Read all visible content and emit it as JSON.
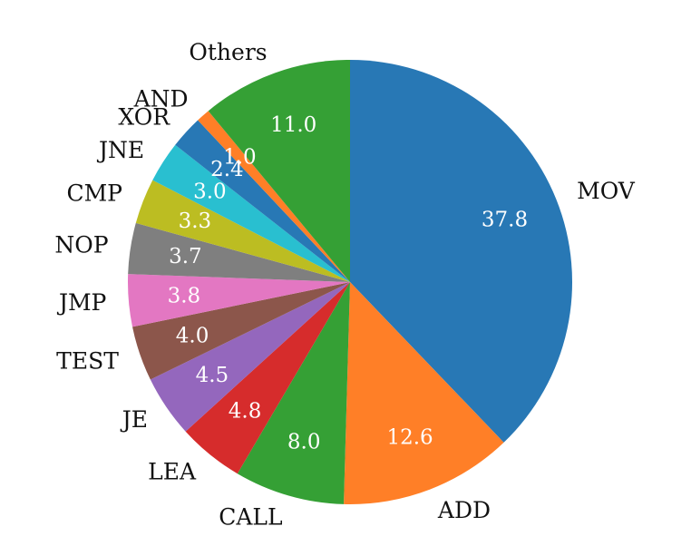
{
  "chart_data": {
    "type": "pie",
    "title": "",
    "categories": [
      "MOV",
      "ADD",
      "CALL",
      "LEA",
      "JE",
      "TEST",
      "JMP",
      "NOP",
      "CMP",
      "JNE",
      "XOR",
      "AND",
      "Others"
    ],
    "values": [
      37.8,
      12.6,
      8.0,
      4.8,
      4.5,
      4.0,
      3.8,
      3.7,
      3.3,
      3.0,
      2.4,
      1.0,
      11.0
    ],
    "value_labels": [
      "37.8",
      "12.6",
      "8.0",
      "4.8",
      "4.5",
      "4.0",
      "3.8",
      "3.7",
      "3.3",
      "3.0",
      "2.4",
      "1.0",
      "11.0"
    ],
    "colors": [
      "#2878b5",
      "#ff7f27",
      "#35a035",
      "#d62c2c",
      "#9467bd",
      "#8c564b",
      "#e377c2",
      "#7f7f7f",
      "#bcbd22",
      "#29bfd0",
      "#2878b5",
      "#ff7f27",
      "#35a035"
    ],
    "start_angle_deg": 90,
    "direction": "clockwise",
    "legend": "none"
  }
}
